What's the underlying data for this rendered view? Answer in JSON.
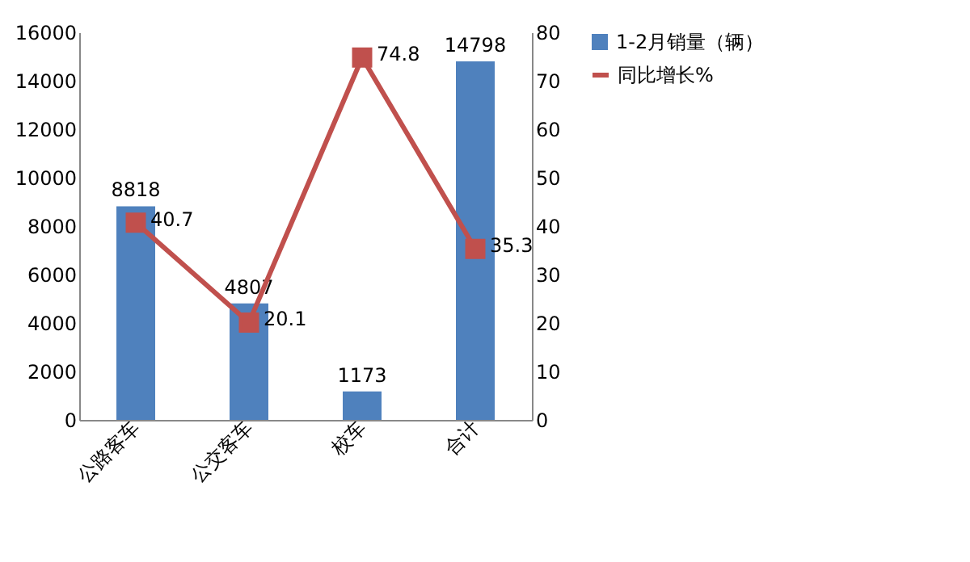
{
  "chart_data": {
    "type": "bar",
    "categories": [
      "公路客车",
      "公交客车",
      "校车",
      "合计"
    ],
    "series": [
      {
        "name": "1-2月销量（辆）",
        "color": "#4f81bd",
        "values": [
          8818,
          4807,
          1173,
          14798
        ]
      },
      {
        "name": "同比增长%",
        "type": "line",
        "axis": "y2",
        "color": "#c0504d",
        "values": [
          40.7,
          20.1,
          74.8,
          35.3
        ]
      }
    ],
    "ylim": [
      0,
      16000
    ],
    "yticks": [
      0,
      2000,
      4000,
      6000,
      8000,
      10000,
      12000,
      14000,
      16000
    ],
    "y2lim": [
      0,
      80
    ],
    "y2ticks": [
      0,
      10,
      20,
      30,
      40,
      50,
      60,
      70,
      80
    ],
    "grid": false,
    "legend": "right",
    "marker": "square",
    "data_labels": true
  }
}
